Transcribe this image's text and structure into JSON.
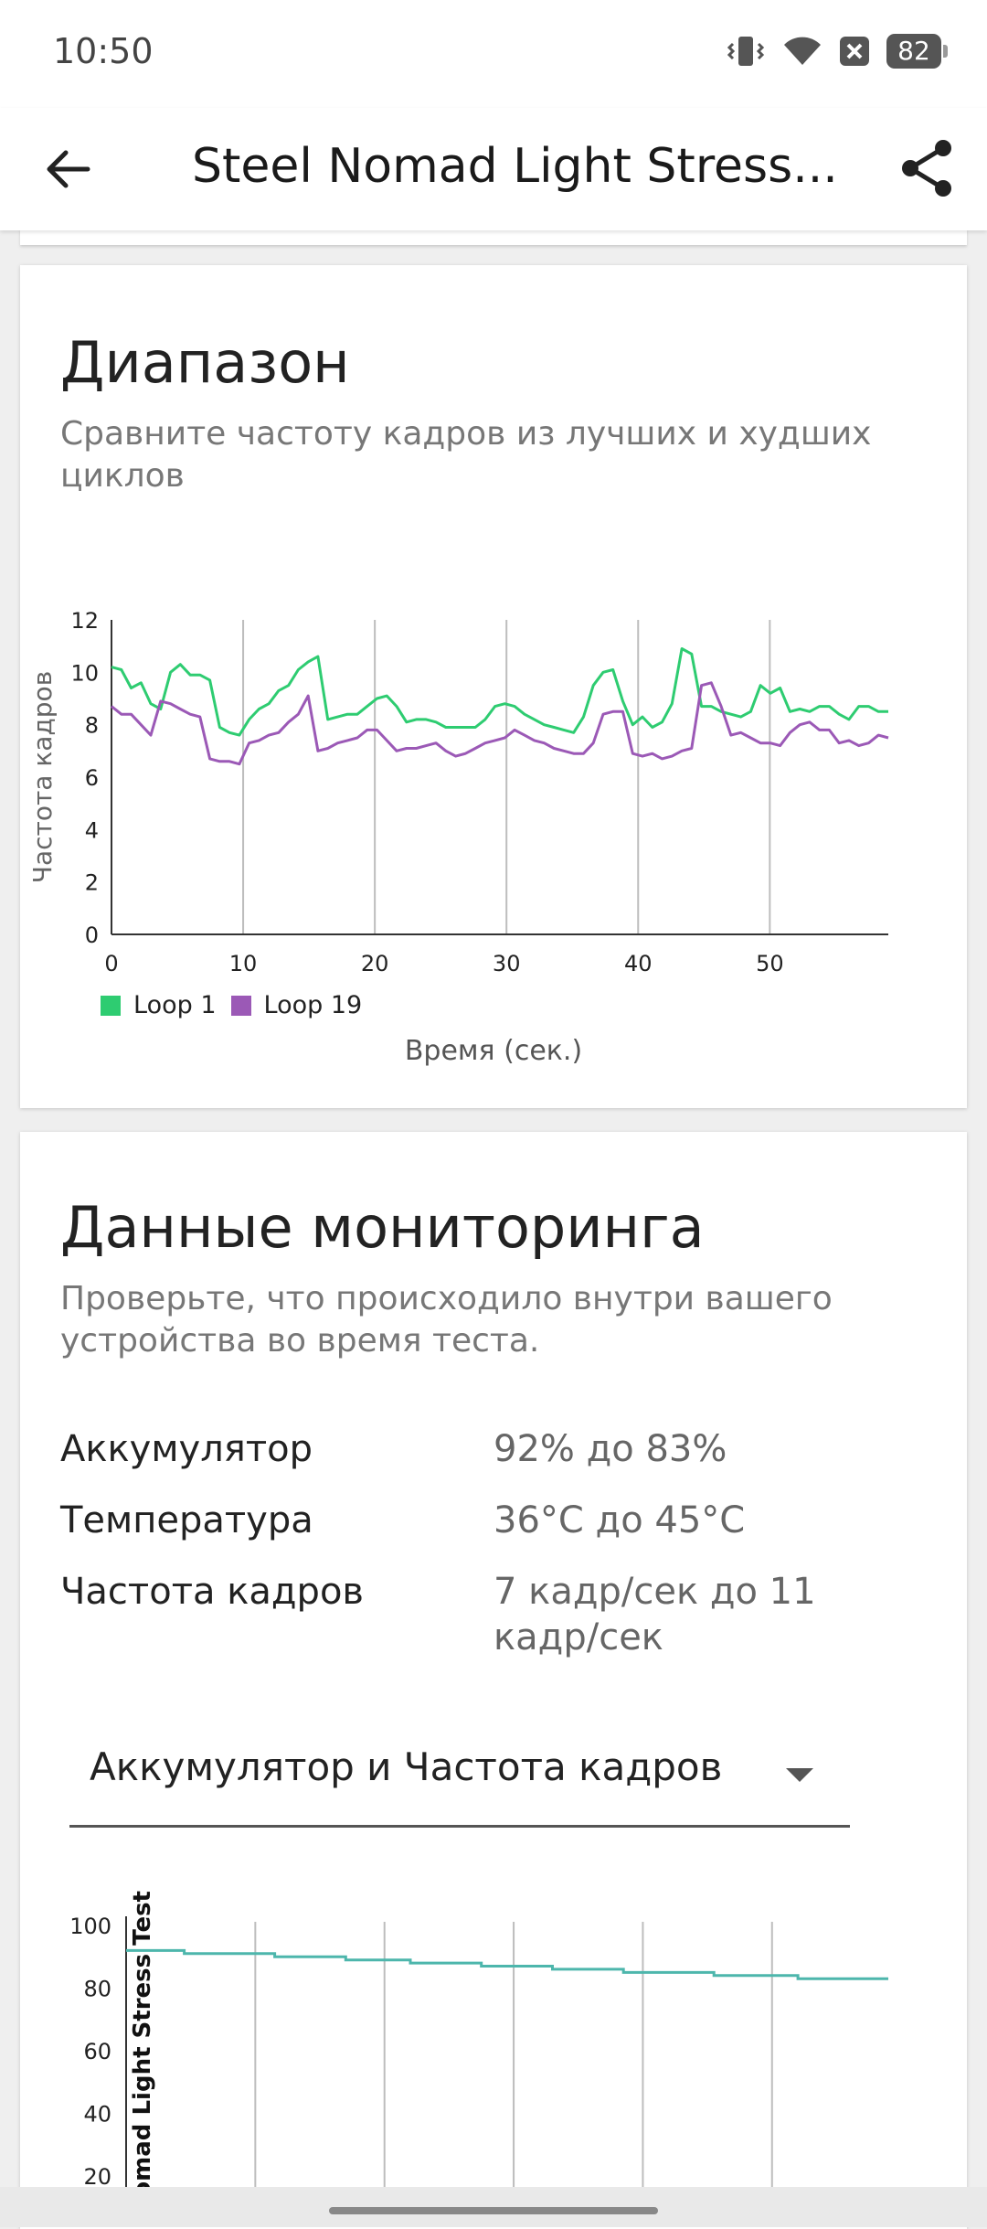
{
  "status_bar": {
    "time": "10:50",
    "battery": "82"
  },
  "app_bar": {
    "title": "Steel Nomad Light Stress..."
  },
  "range_card": {
    "title": "Диапазон",
    "subtitle": "Сравните частоту кадров из лучших и худших циклов"
  },
  "monitoring_card": {
    "title": "Данные мониторинга",
    "subtitle": "Проверьте, что происходило внутри вашего устройства во время теста.",
    "rows": [
      {
        "label": "Аккумулятор",
        "value": "92% до 83%"
      },
      {
        "label": "Температура",
        "value": "36°C до 45°C"
      },
      {
        "label": "Частота кадров",
        "value": "7 кадр/сек до 11 кадр/сек"
      }
    ],
    "dropdown": {
      "selected": "Аккумулятор и Частота кадров"
    }
  },
  "chart_data": [
    {
      "type": "line",
      "title": "",
      "xlabel": "Время (сек.)",
      "ylabel": "Частота кадров",
      "xlim": [
        0,
        59
      ],
      "ylim": [
        0,
        12
      ],
      "x_ticks": [
        0,
        10,
        20,
        30,
        40,
        50
      ],
      "y_ticks": [
        0,
        2,
        4,
        6,
        8,
        10,
        12
      ],
      "grid": "vertical",
      "legend": "bottom-left",
      "series": [
        {
          "name": "Loop 1",
          "color": "#2ecc71",
          "values": [
            10.2,
            10.1,
            9.4,
            9.6,
            8.8,
            8.6,
            10,
            10.3,
            9.9,
            9.9,
            9.7,
            7.9,
            7.7,
            7.6,
            8.2,
            8.6,
            8.8,
            9.3,
            9.5,
            10.1,
            10.4,
            10.6,
            8.2,
            8.3,
            8.4,
            8.4,
            8.7,
            9,
            9.1,
            8.7,
            8.1,
            8.2,
            8.2,
            8.1,
            7.9,
            7.9,
            7.9,
            7.9,
            8.2,
            8.7,
            8.8,
            8.7,
            8.4,
            8.2,
            8,
            7.9,
            7.8,
            7.7,
            8.3,
            9.5,
            10,
            10.1,
            8.9,
            8,
            8.3,
            7.9,
            8.1,
            8.8,
            10.9,
            10.7,
            8.7,
            8.7,
            8.5,
            8.4,
            8.3,
            8.5,
            9.5,
            9.2,
            9.4,
            8.5,
            8.6,
            8.5,
            8.7,
            8.7,
            8.4,
            8.2,
            8.7,
            8.7,
            8.5,
            8.5
          ],
          "x_end": 59
        },
        {
          "name": "Loop 19",
          "color": "#9b59b6",
          "values": [
            8.7,
            8.4,
            8.4,
            8,
            7.6,
            8.9,
            8.8,
            8.6,
            8.4,
            8.3,
            6.7,
            6.6,
            6.6,
            6.5,
            7.3,
            7.4,
            7.6,
            7.7,
            8.1,
            8.4,
            9.1,
            7,
            7.1,
            7.3,
            7.4,
            7.5,
            7.8,
            7.8,
            7.4,
            7,
            7.1,
            7.1,
            7.2,
            7.3,
            7.0,
            6.8,
            6.9,
            7.1,
            7.3,
            7.4,
            7.5,
            7.8,
            7.6,
            7.4,
            7.3,
            7.1,
            7.0,
            6.9,
            6.9,
            7.3,
            8.4,
            8.5,
            8.5,
            6.9,
            6.8,
            6.9,
            6.7,
            6.8,
            7.0,
            7.1,
            9.5,
            9.6,
            8.7,
            7.6,
            7.7,
            7.5,
            7.3,
            7.3,
            7.2,
            7.7,
            8.0,
            8.1,
            7.8,
            7.8,
            7.3,
            7.4,
            7.2,
            7.3,
            7.6,
            7.5
          ],
          "x_end": 59
        }
      ]
    },
    {
      "type": "line",
      "title": "",
      "ylabel": "omad Light Stress Test",
      "xlim": [
        0,
        59
      ],
      "ylim": [
        20,
        100
      ],
      "y_ticks": [
        100,
        80,
        60,
        40,
        20
      ],
      "grid": "vertical",
      "series": [
        {
          "color": "#4db6ac",
          "steps": [
            {
              "x0": 0,
              "x1": 4.5,
              "y": 92
            },
            {
              "x0": 4.5,
              "x1": 11.5,
              "y": 91
            },
            {
              "x0": 11.5,
              "x1": 17,
              "y": 90
            },
            {
              "x0": 17,
              "x1": 22,
              "y": 89
            },
            {
              "x0": 22,
              "x1": 27.5,
              "y": 88
            },
            {
              "x0": 27.5,
              "x1": 33,
              "y": 87
            },
            {
              "x0": 33,
              "x1": 38.5,
              "y": 86
            },
            {
              "x0": 38.5,
              "x1": 45.5,
              "y": 85
            },
            {
              "x0": 45.5,
              "x1": 52,
              "y": 84
            },
            {
              "x0": 52,
              "x1": 59,
              "y": 83
            }
          ]
        }
      ]
    }
  ],
  "icons": {
    "back": "arrow-left-icon",
    "share": "share-icon",
    "vibrate": "vibrate-icon",
    "wifi": "wifi-icon",
    "notification": "x-box-icon",
    "dropdown": "triangle-down-icon"
  }
}
